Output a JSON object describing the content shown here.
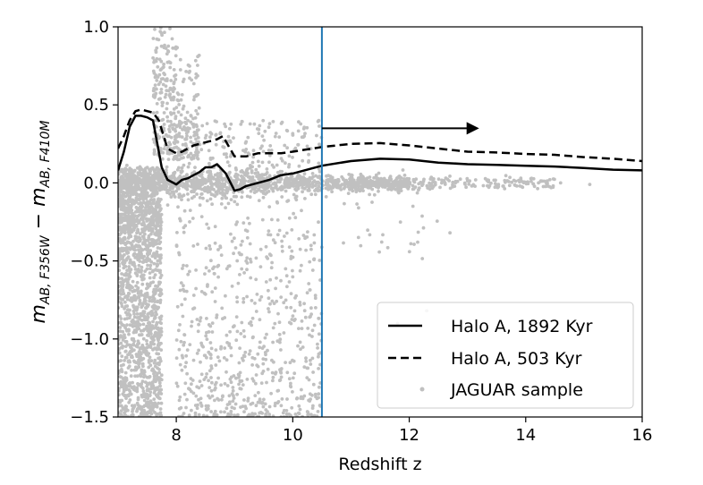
{
  "chart_data": {
    "type": "line",
    "xlabel": "Redshift z",
    "ylabel": "m_{AB,F356W} − m_{AB,F410M}",
    "ylabel_parts": {
      "m1": "m",
      "s1": "AB, F356W",
      "minus": " − ",
      "m2": "m",
      "s2": "AB, F410M"
    },
    "xlim": [
      7,
      16
    ],
    "ylim": [
      -1.5,
      1.0
    ],
    "x_ticks": [
      8,
      10,
      12,
      14,
      16
    ],
    "y_ticks": [
      1.0,
      0.5,
      0.0,
      -0.5,
      -1.0,
      -1.5
    ],
    "x_tick_labels": [
      "8",
      "10",
      "12",
      "14",
      "16"
    ],
    "y_tick_labels": [
      "1.0",
      "0.5",
      "0.0",
      "−0.5",
      "−1.0",
      "−1.5"
    ],
    "legend_placement": "lower-right",
    "grid": false,
    "series": [
      {
        "name": "Halo A, 1892 Kyr",
        "style": "solid",
        "color": "#000000",
        "x": [
          7.0,
          7.1,
          7.2,
          7.3,
          7.4,
          7.5,
          7.6,
          7.65,
          7.75,
          7.85,
          8.0,
          8.1,
          8.2,
          8.3,
          8.4,
          8.5,
          8.6,
          8.7,
          8.85,
          9.0,
          9.1,
          9.2,
          9.4,
          9.6,
          9.8,
          10.0,
          10.5,
          11.0,
          11.5,
          12.0,
          12.5,
          13.0,
          13.5,
          14.0,
          14.5,
          15.0,
          15.5,
          16.0
        ],
        "y": [
          0.08,
          0.2,
          0.36,
          0.43,
          0.43,
          0.42,
          0.4,
          0.3,
          0.1,
          0.02,
          -0.01,
          0.02,
          0.03,
          0.05,
          0.07,
          0.1,
          0.1,
          0.12,
          0.06,
          -0.05,
          -0.04,
          -0.02,
          0.0,
          0.02,
          0.05,
          0.06,
          0.11,
          0.14,
          0.155,
          0.15,
          0.13,
          0.12,
          0.115,
          0.11,
          0.105,
          0.095,
          0.085,
          0.08
        ]
      },
      {
        "name": "Halo A, 503 Kyr",
        "style": "dashed",
        "color": "#000000",
        "x": [
          7.0,
          7.1,
          7.2,
          7.3,
          7.4,
          7.5,
          7.6,
          7.7,
          7.85,
          8.0,
          8.1,
          8.3,
          8.5,
          8.7,
          8.8,
          9.0,
          9.2,
          9.4,
          9.6,
          9.8,
          10.0,
          10.5,
          11.0,
          11.5,
          12.0,
          12.5,
          13.0,
          13.5,
          14.0,
          14.5,
          15.0,
          15.5,
          16.0
        ],
        "y": [
          0.22,
          0.3,
          0.4,
          0.46,
          0.47,
          0.46,
          0.45,
          0.4,
          0.22,
          0.19,
          0.2,
          0.24,
          0.26,
          0.28,
          0.3,
          0.17,
          0.17,
          0.19,
          0.19,
          0.19,
          0.2,
          0.23,
          0.25,
          0.255,
          0.24,
          0.22,
          0.2,
          0.195,
          0.185,
          0.18,
          0.165,
          0.155,
          0.14
        ]
      }
    ],
    "scatter_series": {
      "name": "JAGUAR sample",
      "color": "#c0c0c0",
      "seed": 12345
    },
    "annotations": {
      "vline": {
        "x": 10.5,
        "color": "#1f77b4"
      },
      "arrow": {
        "from": [
          10.5,
          0.35
        ],
        "to": [
          13.2,
          0.35
        ],
        "color": "#000000"
      }
    }
  }
}
